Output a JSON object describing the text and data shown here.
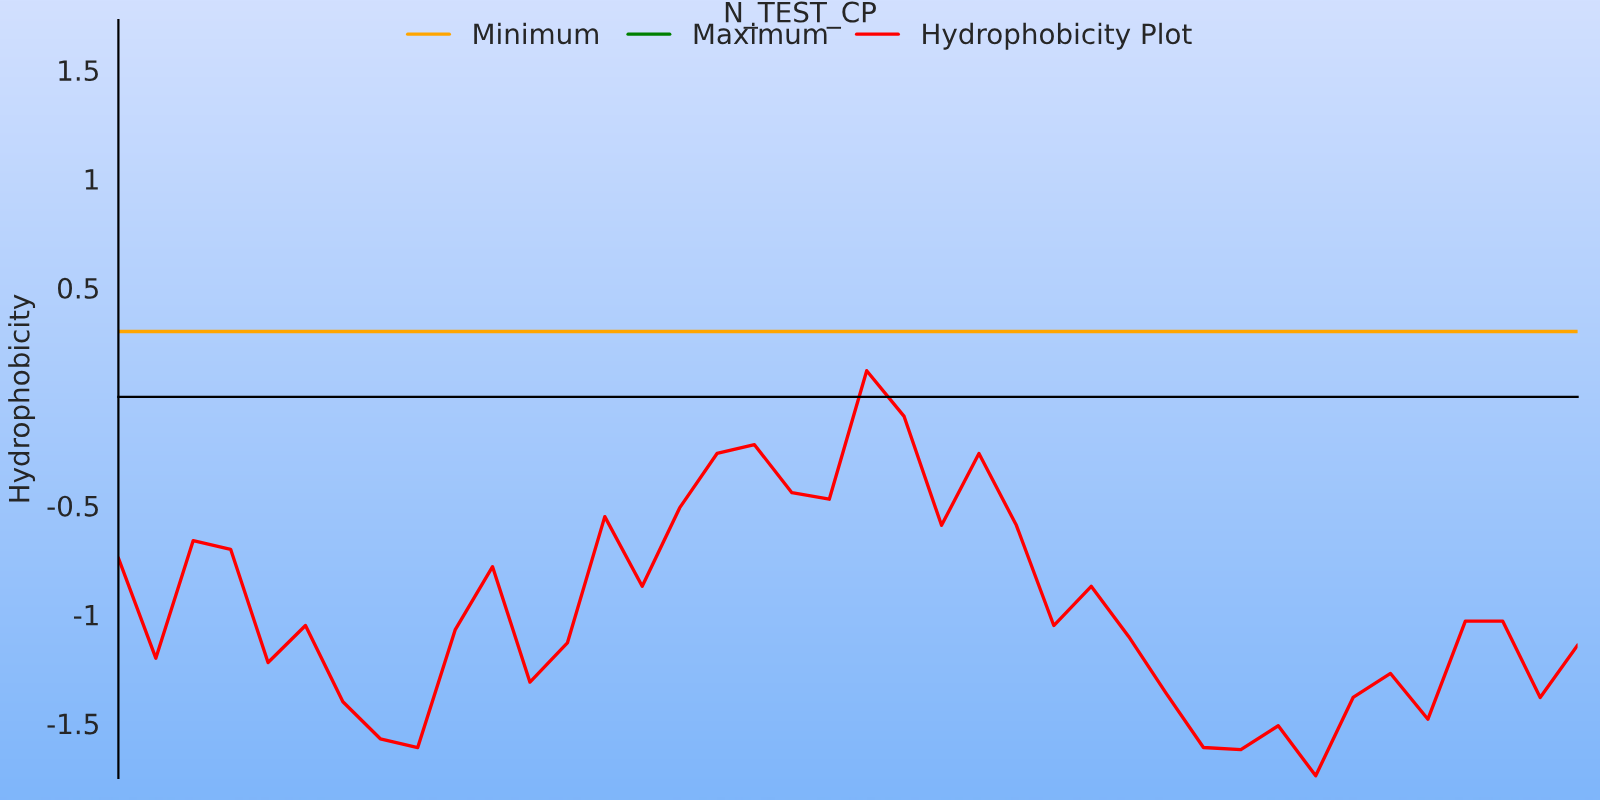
{
  "chart_data": {
    "type": "line",
    "title": "N_TEST_CP",
    "ylabel": "Hydrophobicity",
    "categories": [
      null,
      null,
      null,
      null,
      null,
      null,
      null,
      null,
      null,
      null,
      null,
      null,
      null,
      null,
      null,
      null,
      null,
      null,
      null,
      null,
      null,
      null,
      null,
      null,
      null,
      null,
      null,
      null,
      null,
      null,
      null,
      null,
      null,
      null,
      null,
      null,
      null,
      null,
      null,
      null
    ],
    "series": [
      {
        "name": "Minimum",
        "color": "#ffa500",
        "values": [
          0.3,
          0.3,
          0.3,
          0.3,
          0.3,
          0.3,
          0.3,
          0.3,
          0.3,
          0.3,
          0.3,
          0.3,
          0.3,
          0.3,
          0.3,
          0.3,
          0.3,
          0.3,
          0.3,
          0.3,
          0.3,
          0.3,
          0.3,
          0.3,
          0.3,
          0.3,
          0.3,
          0.3,
          0.3,
          0.3,
          0.3,
          0.3,
          0.3,
          0.3,
          0.3,
          0.3,
          0.3,
          0.3,
          0.3,
          0.3
        ]
      },
      {
        "name": "Maximum",
        "color": "#008000",
        "values": [
          null,
          null,
          null,
          null,
          null,
          null,
          null,
          null,
          null,
          null,
          null,
          null,
          null,
          null,
          null,
          null,
          null,
          null,
          null,
          null,
          null,
          null,
          null,
          null,
          null,
          null,
          null,
          null,
          null,
          null,
          null,
          null,
          null,
          null,
          null,
          null,
          null,
          null,
          null,
          null
        ]
      },
      {
        "name": "Hydrophobicity Plot",
        "color": "#ff0000",
        "values": [
          -0.74,
          -1.2,
          -0.66,
          -0.7,
          -1.22,
          -1.05,
          -1.4,
          -1.57,
          -1.61,
          -1.07,
          -0.78,
          -1.31,
          -1.13,
          -0.55,
          -0.87,
          -0.51,
          -0.26,
          -0.22,
          -0.44,
          -0.47,
          0.12,
          -0.09,
          -0.59,
          -0.26,
          -0.59,
          -1.05,
          -0.87,
          -1.1,
          -1.36,
          -1.61,
          -1.62,
          -1.51,
          -1.74,
          -1.38,
          -1.27,
          -1.48,
          -1.03,
          -1.03,
          -1.38,
          -1.14
        ]
      }
    ],
    "ylim": [
      -1.75,
      1.73
    ],
    "yticks": [
      -1.5,
      -1,
      -0.5,
      0.5,
      1,
      1.5
    ],
    "tick_labels": "y",
    "grid": false,
    "legend": "top",
    "marker": "none",
    "line_style": "solid"
  }
}
